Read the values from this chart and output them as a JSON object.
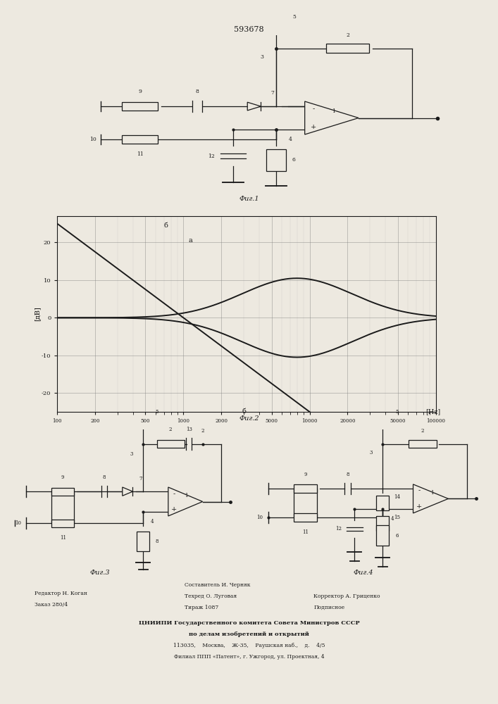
{
  "patent_number": "593678",
  "fig1_caption": "Фиг.1",
  "fig2_caption": "Фиг.2",
  "fig3_caption": "Фиг.3",
  "fig4_caption": "Фиг.4",
  "graph_ylabel": "[дВ]",
  "graph_xlabel": "[Нz]",
  "graph_xlabel_b": "б",
  "graph_yticks": [
    -20,
    -10,
    0,
    10,
    20
  ],
  "curve_a_label": "а",
  "curve_b_label": "б",
  "footer_line1_left": "Редактор Н. Коган",
  "footer_line2_left": "Заказ 280/4",
  "footer_line1_center": "Составитель И. Черняк",
  "footer_line2_center": "Техред О. Луговая",
  "footer_line3_center": "Тираж 1087",
  "footer_line1_right": "Корректор А. Гриценко",
  "footer_line2_right": "Подписное",
  "footer_org": "ЦНИИПИ Государственного комитета Совета Министров СССР",
  "footer_org2": "по делам изобретений и открытий",
  "footer_addr": "113035,    Москва,    Ж-35,    Раушская наб.,    д.    4/5",
  "footer_branch": "Филиал ППП «Патент», г. Ужгород, ул. Проектная, 4",
  "bg_color": "#ede9e0",
  "line_color": "#1a1a1a"
}
